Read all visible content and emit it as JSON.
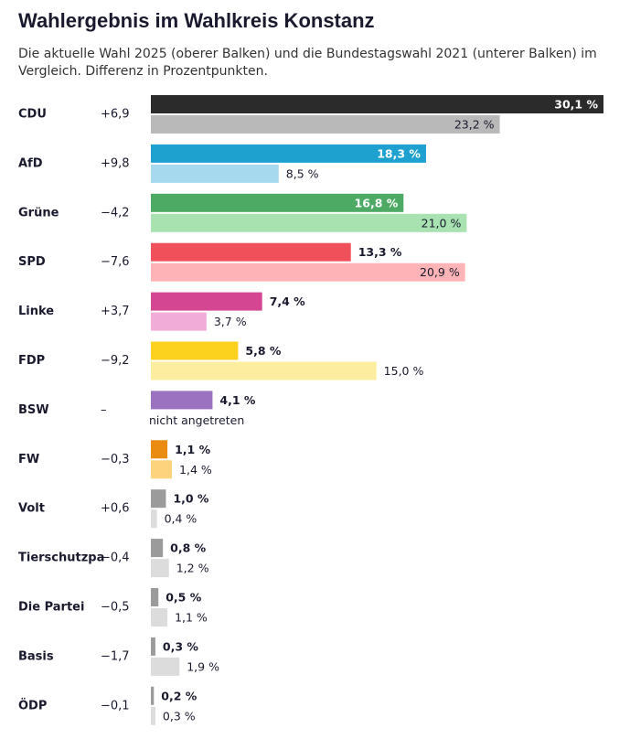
{
  "chart_data": {
    "type": "bar",
    "orientation": "horizontal",
    "title": "Wahlergebnis im Wahlkreis Konstanz",
    "subtitle": [
      "Die aktuelle Wahl 2025 (oberer Balken) und die Bundestagswahl 2021 (unterer Balken) im",
      "Vergleich. Differenz in Prozentpunkten."
    ],
    "categories": [
      "CDU",
      "AfD",
      "Grüne",
      "SPD",
      "Linke",
      "FDP",
      "BSW",
      "FW",
      "Volt",
      "Tierschutzpa",
      "Die Partei",
      "Basis",
      "ÖDP"
    ],
    "differences": [
      6.9,
      9.8,
      -4.2,
      -7.6,
      3.7,
      -9.2,
      null,
      -0.3,
      0.6,
      -0.4,
      -0.5,
      -1.7,
      -0.1
    ],
    "difference_labels": [
      "+6,9",
      "+9,8",
      "−4,2",
      "−7,6",
      "+3,7",
      "−9,2",
      "–",
      "−0,3",
      "+0,6",
      "−0,4",
      "−0,5",
      "−1,7",
      "−0,1"
    ],
    "series": [
      {
        "values": [
          30.1,
          18.3,
          16.8,
          13.3,
          7.4,
          5.8,
          4.1,
          1.1,
          1.0,
          0.8,
          0.5,
          0.3,
          0.2
        ],
        "value_labels": [
          "30,1 %",
          "18,3 %",
          "16,8 %",
          "13,3 %",
          "7,4 %",
          "5,8 %",
          "4,1 %",
          "1,1 %",
          "1,0 %",
          "0,8 %",
          "0,5 %",
          "0,3 %",
          "0,2 %"
        ],
        "colors": [
          "#2b2b2b",
          "#1fa1d0",
          "#4caa64",
          "#f0505a",
          "#d54692",
          "#fdd21f",
          "#9b72bf",
          "#ea8c12",
          "#9b9b9b",
          "#9b9b9b",
          "#9b9b9b",
          "#9b9b9b",
          "#9b9b9b"
        ]
      },
      {
        "values": [
          23.2,
          8.5,
          21.0,
          20.9,
          3.7,
          15.0,
          null,
          1.4,
          0.4,
          1.2,
          1.1,
          1.9,
          0.3
        ],
        "value_labels": [
          "23,2 %",
          "8,5 %",
          "21,0 %",
          "20,9 %",
          "3,7 %",
          "15,0 %",
          "nicht angetreten",
          "1,4 %",
          "0,4 %",
          "1,2 %",
          "1,1 %",
          "1,9 %",
          "0,3 %"
        ],
        "colors": [
          "#b9b9b9",
          "#a6d9ee",
          "#a8e2b1",
          "#feb3b6",
          "#f2acd8",
          "#fdee9f",
          "#cfbde4",
          "#fdd37d",
          "#dcdcdc",
          "#dcdcdc",
          "#dcdcdc",
          "#dcdcdc",
          "#dcdcdc"
        ]
      }
    ]
  }
}
